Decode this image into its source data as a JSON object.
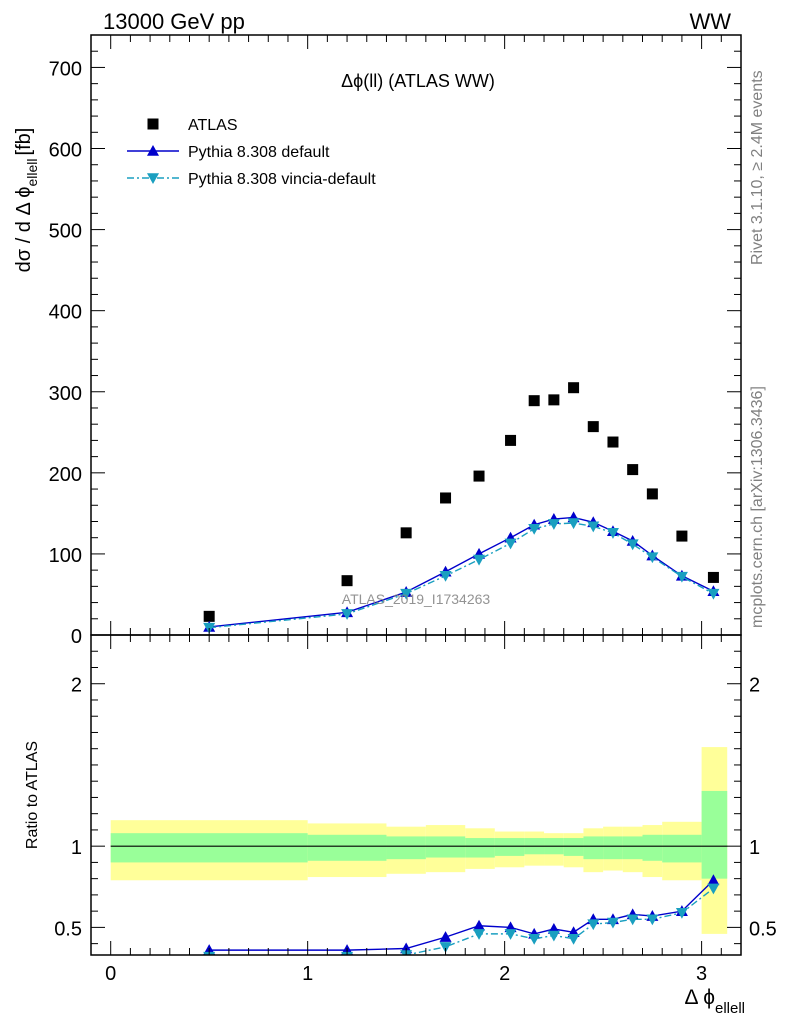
{
  "header": {
    "energy_label": "13000 GeV pp",
    "process_label": "WW",
    "side_label_top": "Rivet 3.1.10, ≥ 2.4M events",
    "side_label_bottom": "mcplots.cern.ch [arXiv:1306.3436]",
    "watermark": "ATLAS_2019_I1734263"
  },
  "chart_data": [
    {
      "type": "scatter",
      "title": "Δϕ(ll) (ATLAS WW)",
      "xlabel": "Δ ϕ",
      "xlabel_sub": "ellell",
      "ylabel": "dσ / d Δ ϕ",
      "ylabel_sub": "ellell",
      "ylabel_unit": "[fb]",
      "xlim": [
        -0.1,
        3.2
      ],
      "ylim": [
        0,
        740
      ],
      "yticks": [
        0,
        100,
        200,
        300,
        400,
        500,
        600,
        700
      ],
      "grid": false,
      "legend_position": "top-left",
      "x": [
        0.5,
        1.2,
        1.5,
        1.7,
        1.87,
        2.03,
        2.15,
        2.25,
        2.35,
        2.45,
        2.55,
        2.65,
        2.75,
        2.9,
        3.06
      ],
      "series": [
        {
          "name": "ATLAS",
          "marker": "square",
          "color": "#000000",
          "values": [
            23,
            67,
            126,
            169,
            196,
            240,
            289,
            290,
            305,
            257,
            238,
            204,
            174,
            122,
            71
          ]
        },
        {
          "name": "Pythia 8.308 default",
          "marker": "triangle-up",
          "color": "#0000cc",
          "line": "solid",
          "values": [
            10,
            28,
            53,
            78,
            100,
            120,
            136,
            143,
            145,
            139,
            128,
            116,
            98,
            73,
            54
          ]
        },
        {
          "name": "Pythia 8.308 vincia-default",
          "marker": "triangle-down",
          "color": "#1a9fc0",
          "line": "dashdot",
          "values": [
            9,
            26,
            51,
            73,
            93,
            113,
            131,
            137,
            138,
            134,
            126,
            112,
            96,
            72,
            51
          ]
        }
      ]
    },
    {
      "type": "line",
      "ylabel": "Ratio to ATLAS",
      "xlim": [
        -0.1,
        3.2
      ],
      "ylim": [
        0.33,
        2.3
      ],
      "yticks": [
        0.5,
        1,
        2
      ],
      "ytick_labels": [
        "0.5",
        "1",
        "2"
      ],
      "xticks": [
        0,
        1,
        2,
        3
      ],
      "xtick_labels": [
        "0",
        "1",
        "2",
        "3"
      ],
      "reference_line": 1,
      "bands": {
        "edges": [
          0.0,
          1.0,
          1.4,
          1.6,
          1.8,
          1.95,
          2.1,
          2.2,
          2.3,
          2.4,
          2.5,
          2.6,
          2.7,
          2.8,
          3.0,
          3.13
        ],
        "yellow": [
          [
            0.79,
            1.16
          ],
          [
            0.81,
            1.14
          ],
          [
            0.83,
            1.12
          ],
          [
            0.84,
            1.13
          ],
          [
            0.86,
            1.11
          ],
          [
            0.87,
            1.09
          ],
          [
            0.88,
            1.09
          ],
          [
            0.88,
            1.08
          ],
          [
            0.87,
            1.08
          ],
          [
            0.84,
            1.11
          ],
          [
            0.85,
            1.12
          ],
          [
            0.84,
            1.12
          ],
          [
            0.81,
            1.13
          ],
          [
            0.79,
            1.15
          ],
          [
            0.46,
            1.61
          ]
        ],
        "green": [
          [
            0.9,
            1.08
          ],
          [
            0.91,
            1.07
          ],
          [
            0.92,
            1.06
          ],
          [
            0.93,
            1.06
          ],
          [
            0.93,
            1.05
          ],
          [
            0.94,
            1.05
          ],
          [
            0.95,
            1.05
          ],
          [
            0.95,
            1.05
          ],
          [
            0.94,
            1.05
          ],
          [
            0.92,
            1.06
          ],
          [
            0.92,
            1.06
          ],
          [
            0.92,
            1.06
          ],
          [
            0.91,
            1.07
          ],
          [
            0.9,
            1.07
          ],
          [
            0.8,
            1.34
          ]
        ]
      },
      "x": [
        0.5,
        1.2,
        1.5,
        1.7,
        1.87,
        2.03,
        2.15,
        2.25,
        2.35,
        2.45,
        2.55,
        2.65,
        2.75,
        2.9,
        3.06
      ],
      "series": [
        {
          "name": "Pythia 8.308 default",
          "color": "#0000cc",
          "values": [
            0.36,
            0.36,
            0.37,
            0.44,
            0.51,
            0.5,
            0.46,
            0.49,
            0.47,
            0.55,
            0.55,
            0.58,
            0.57,
            0.6,
            0.79
          ]
        },
        {
          "name": "Pythia 8.308 vincia-default",
          "color": "#1a9fc0",
          "values": [
            0.32,
            0.32,
            0.33,
            0.38,
            0.46,
            0.46,
            0.43,
            0.45,
            0.43,
            0.52,
            0.53,
            0.55,
            0.55,
            0.59,
            0.74
          ]
        }
      ]
    }
  ]
}
